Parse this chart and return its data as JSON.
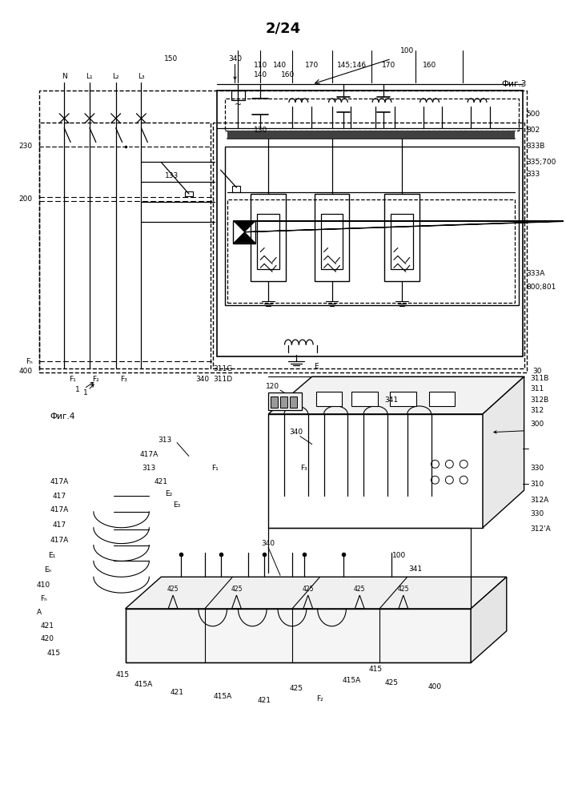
{
  "title": "2/24",
  "bg_color": "#ffffff",
  "line_color": "#000000",
  "fig3_label": "Фиг.3",
  "fig4_label": "Фиг.4"
}
